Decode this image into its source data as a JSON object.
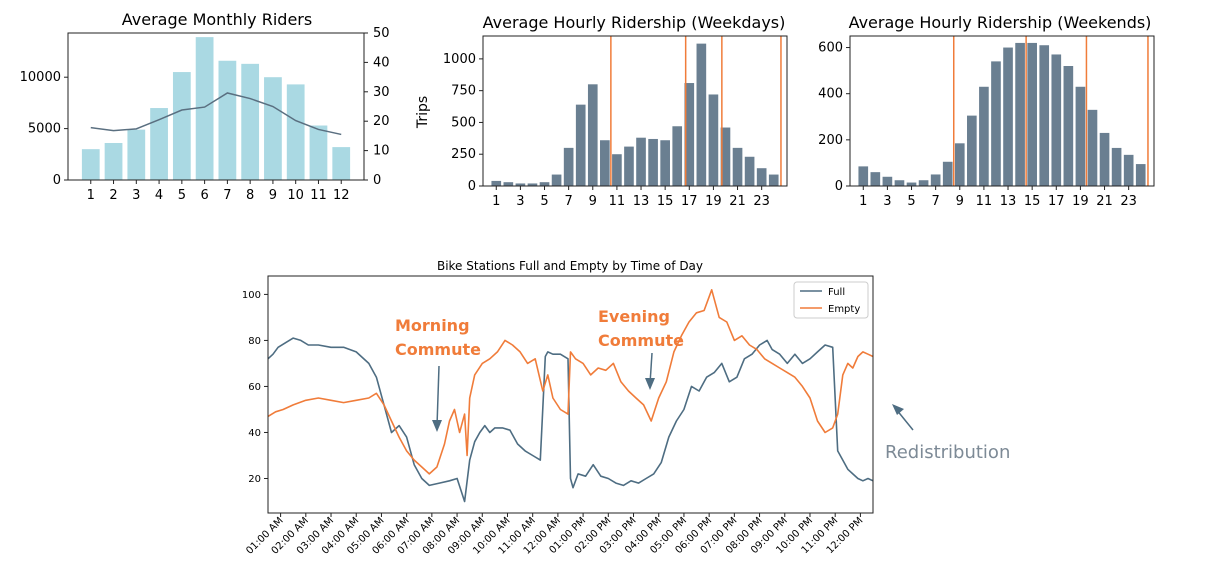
{
  "chart_data": [
    {
      "type": "bar",
      "title": "Average Monthly Riders",
      "categories": [
        "1",
        "2",
        "3",
        "4",
        "5",
        "6",
        "7",
        "8",
        "9",
        "10",
        "11",
        "12"
      ],
      "values": [
        3000,
        3600,
        4900,
        7000,
        10500,
        13900,
        11600,
        11300,
        10000,
        9300,
        5300,
        3200
      ],
      "ylim": [
        0,
        14300
      ],
      "yticks": [
        "0",
        "5000",
        "10000"
      ],
      "ytick_values": [
        0,
        5000,
        10000
      ],
      "line": {
        "values": [
          17.8,
          16.8,
          17.4,
          20.5,
          23.8,
          24.8,
          29.6,
          27.7,
          25.0,
          20.2,
          17.2,
          15.5
        ]
      },
      "y2lim": [
        0,
        50
      ],
      "y2ticks": [
        "0",
        "10",
        "20",
        "30",
        "40",
        "50"
      ],
      "y2tick_values": [
        0,
        10,
        20,
        30,
        40,
        50
      ],
      "bar_color": "#aad9e3",
      "line_color": "#5a6f80"
    },
    {
      "type": "bar",
      "title": "Average Hourly Ridership (Weekdays)",
      "ylabel": "Trips",
      "categories": [
        "1",
        "2",
        "3",
        "4",
        "5",
        "6",
        "7",
        "8",
        "9",
        "10",
        "11",
        "12",
        "13",
        "14",
        "15",
        "16",
        "17",
        "18",
        "19",
        "20",
        "21",
        "22",
        "23",
        "24"
      ],
      "xtick_labels": [
        "1",
        "3",
        "5",
        "7",
        "9",
        "11",
        "13",
        "15",
        "17",
        "19",
        "21",
        "23"
      ],
      "values": [
        40,
        30,
        20,
        20,
        30,
        90,
        300,
        640,
        800,
        360,
        250,
        310,
        380,
        370,
        360,
        470,
        810,
        1120,
        720,
        460,
        300,
        230,
        140,
        90
      ],
      "ylim": [
        0,
        1180
      ],
      "yticks": [
        "0",
        "250",
        "500",
        "750",
        "1000"
      ],
      "ytick_values": [
        0,
        250,
        500,
        750,
        1000
      ],
      "vlines": [
        10.5,
        16.7,
        19.7,
        24.6
      ],
      "bar_color": "#6a7f91",
      "vline_color": "#f07c3a"
    },
    {
      "type": "bar",
      "title": "Average Hourly Ridership (Weekends)",
      "categories": [
        "1",
        "2",
        "3",
        "4",
        "5",
        "6",
        "7",
        "8",
        "9",
        "10",
        "11",
        "12",
        "13",
        "14",
        "15",
        "16",
        "17",
        "18",
        "19",
        "20",
        "21",
        "22",
        "23",
        "24"
      ],
      "xtick_labels": [
        "1",
        "3",
        "5",
        "7",
        "9",
        "11",
        "13",
        "15",
        "17",
        "19",
        "21",
        "23"
      ],
      "values": [
        85,
        60,
        40,
        25,
        15,
        25,
        50,
        105,
        185,
        305,
        430,
        540,
        600,
        620,
        620,
        610,
        570,
        520,
        430,
        330,
        230,
        165,
        135,
        95
      ],
      "ylim": [
        0,
        650
      ],
      "yticks": [
        "0",
        "200",
        "400",
        "600"
      ],
      "ytick_values": [
        0,
        200,
        400,
        600
      ],
      "vlines": [
        8.5,
        14.5,
        19.5,
        24.6
      ],
      "bar_color": "#6a7f91",
      "vline_color": "#f07c3a"
    },
    {
      "type": "line",
      "title": "Bike Stations Full and Empty by Time of Day",
      "xtick_labels": [
        "01:00 AM",
        "02:00 AM",
        "03:00 AM",
        "04:00 AM",
        "05:00 AM",
        "06:00 AM",
        "07:00 AM",
        "08:00 AM",
        "09:00 AM",
        "10:00 AM",
        "11:00 AM",
        "12:00 AM",
        "01:00 PM",
        "02:00 PM",
        "03:00 PM",
        "04:00 PM",
        "05:00 PM",
        "06:00 PM",
        "07:00 PM",
        "08:00 PM",
        "09:00 PM",
        "10:00 PM",
        "11:00 PM",
        "12:00 PM"
      ],
      "xlim": [
        0,
        24
      ],
      "ylim": [
        5,
        108
      ],
      "yticks": [
        "20",
        "40",
        "60",
        "80",
        "100"
      ],
      "ytick_values": [
        20,
        40,
        60,
        80,
        100
      ],
      "series": [
        {
          "name": "Full",
          "color": "#4e6d82",
          "x": [
            0,
            0.2,
            0.4,
            0.7,
            1.0,
            1.3,
            1.6,
            2.0,
            2.5,
            3.0,
            3.5,
            4.0,
            4.3,
            4.6,
            4.9,
            5.2,
            5.5,
            5.8,
            6.1,
            6.4,
            6.8,
            7.2,
            7.5,
            7.8,
            8.0,
            8.2,
            8.4,
            8.6,
            8.8,
            9.0,
            9.3,
            9.6,
            9.9,
            10.2,
            10.5,
            10.8,
            11.0,
            11.1,
            11.3,
            11.6,
            11.9,
            12.0,
            12.1,
            12.3,
            12.6,
            12.9,
            13.2,
            13.5,
            13.8,
            14.1,
            14.4,
            14.7,
            15.0,
            15.3,
            15.6,
            15.9,
            16.2,
            16.5,
            16.8,
            17.1,
            17.4,
            17.7,
            18.0,
            18.3,
            18.6,
            18.9,
            19.2,
            19.5,
            19.8,
            20.0,
            20.3,
            20.6,
            20.9,
            21.2,
            21.5,
            21.8,
            22.1,
            22.4,
            22.6,
            22.8,
            23.0,
            23.2,
            23.4,
            23.6,
            23.8,
            24.0
          ],
          "y": [
            72,
            74,
            77,
            79,
            81,
            80,
            78,
            78,
            77,
            77,
            75,
            70,
            64,
            52,
            40,
            43,
            38,
            26,
            20,
            17,
            18,
            19,
            20,
            10,
            28,
            36,
            40,
            43,
            40,
            42,
            42,
            41,
            35,
            32,
            30,
            28,
            73,
            75,
            74,
            74,
            72,
            20,
            16,
            22,
            21,
            26,
            21,
            20,
            18,
            17,
            19,
            18,
            20,
            22,
            27,
            38,
            45,
            50,
            60,
            58,
            64,
            66,
            70,
            62,
            64,
            72,
            74,
            78,
            80,
            76,
            74,
            70,
            74,
            70,
            72,
            75,
            78,
            77,
            32,
            28,
            24,
            22,
            20,
            19,
            20,
            19
          ]
        },
        {
          "name": "Empty",
          "color": "#f07c3a",
          "x": [
            0,
            0.3,
            0.6,
            1.0,
            1.5,
            2.0,
            2.5,
            3.0,
            3.5,
            4.0,
            4.3,
            4.6,
            4.9,
            5.2,
            5.5,
            5.8,
            6.1,
            6.4,
            6.7,
            7.0,
            7.2,
            7.4,
            7.6,
            7.8,
            7.9,
            8.0,
            8.2,
            8.5,
            8.8,
            9.1,
            9.4,
            9.7,
            10.0,
            10.3,
            10.6,
            10.9,
            11.1,
            11.3,
            11.6,
            11.9,
            12.0,
            12.2,
            12.5,
            12.8,
            13.1,
            13.4,
            13.7,
            14.0,
            14.3,
            14.6,
            14.9,
            15.2,
            15.5,
            15.8,
            16.1,
            16.4,
            16.7,
            17.0,
            17.3,
            17.6,
            17.9,
            18.2,
            18.5,
            18.8,
            19.1,
            19.4,
            19.7,
            20.0,
            20.3,
            20.6,
            20.9,
            21.2,
            21.5,
            21.8,
            22.1,
            22.4,
            22.6,
            22.8,
            23.0,
            23.2,
            23.4,
            23.6,
            23.8,
            24.0
          ],
          "y": [
            47,
            49,
            50,
            52,
            54,
            55,
            54,
            53,
            54,
            55,
            57,
            52,
            45,
            38,
            32,
            28,
            25,
            22,
            25,
            35,
            45,
            50,
            40,
            48,
            30,
            55,
            65,
            70,
            72,
            75,
            80,
            78,
            75,
            70,
            72,
            58,
            65,
            55,
            50,
            48,
            75,
            72,
            70,
            65,
            68,
            67,
            70,
            62,
            58,
            55,
            52,
            45,
            55,
            62,
            75,
            82,
            88,
            92,
            93,
            102,
            90,
            88,
            80,
            82,
            78,
            76,
            72,
            70,
            68,
            66,
            64,
            60,
            55,
            45,
            40,
            42,
            48,
            65,
            70,
            68,
            73,
            75,
            74,
            73
          ]
        }
      ],
      "legend": "top-right",
      "annotations": [
        {
          "label_lines": [
            "Morning",
            "Commute"
          ],
          "color": "#f07c3a",
          "x": 6.7,
          "y": 38
        },
        {
          "label_lines": [
            "Evening",
            "Commute"
          ],
          "color": "#f07c3a",
          "x": 15.0,
          "y": 58
        }
      ],
      "side_annotation": {
        "label": "Redistribution",
        "color": "#7d8a96"
      }
    }
  ]
}
